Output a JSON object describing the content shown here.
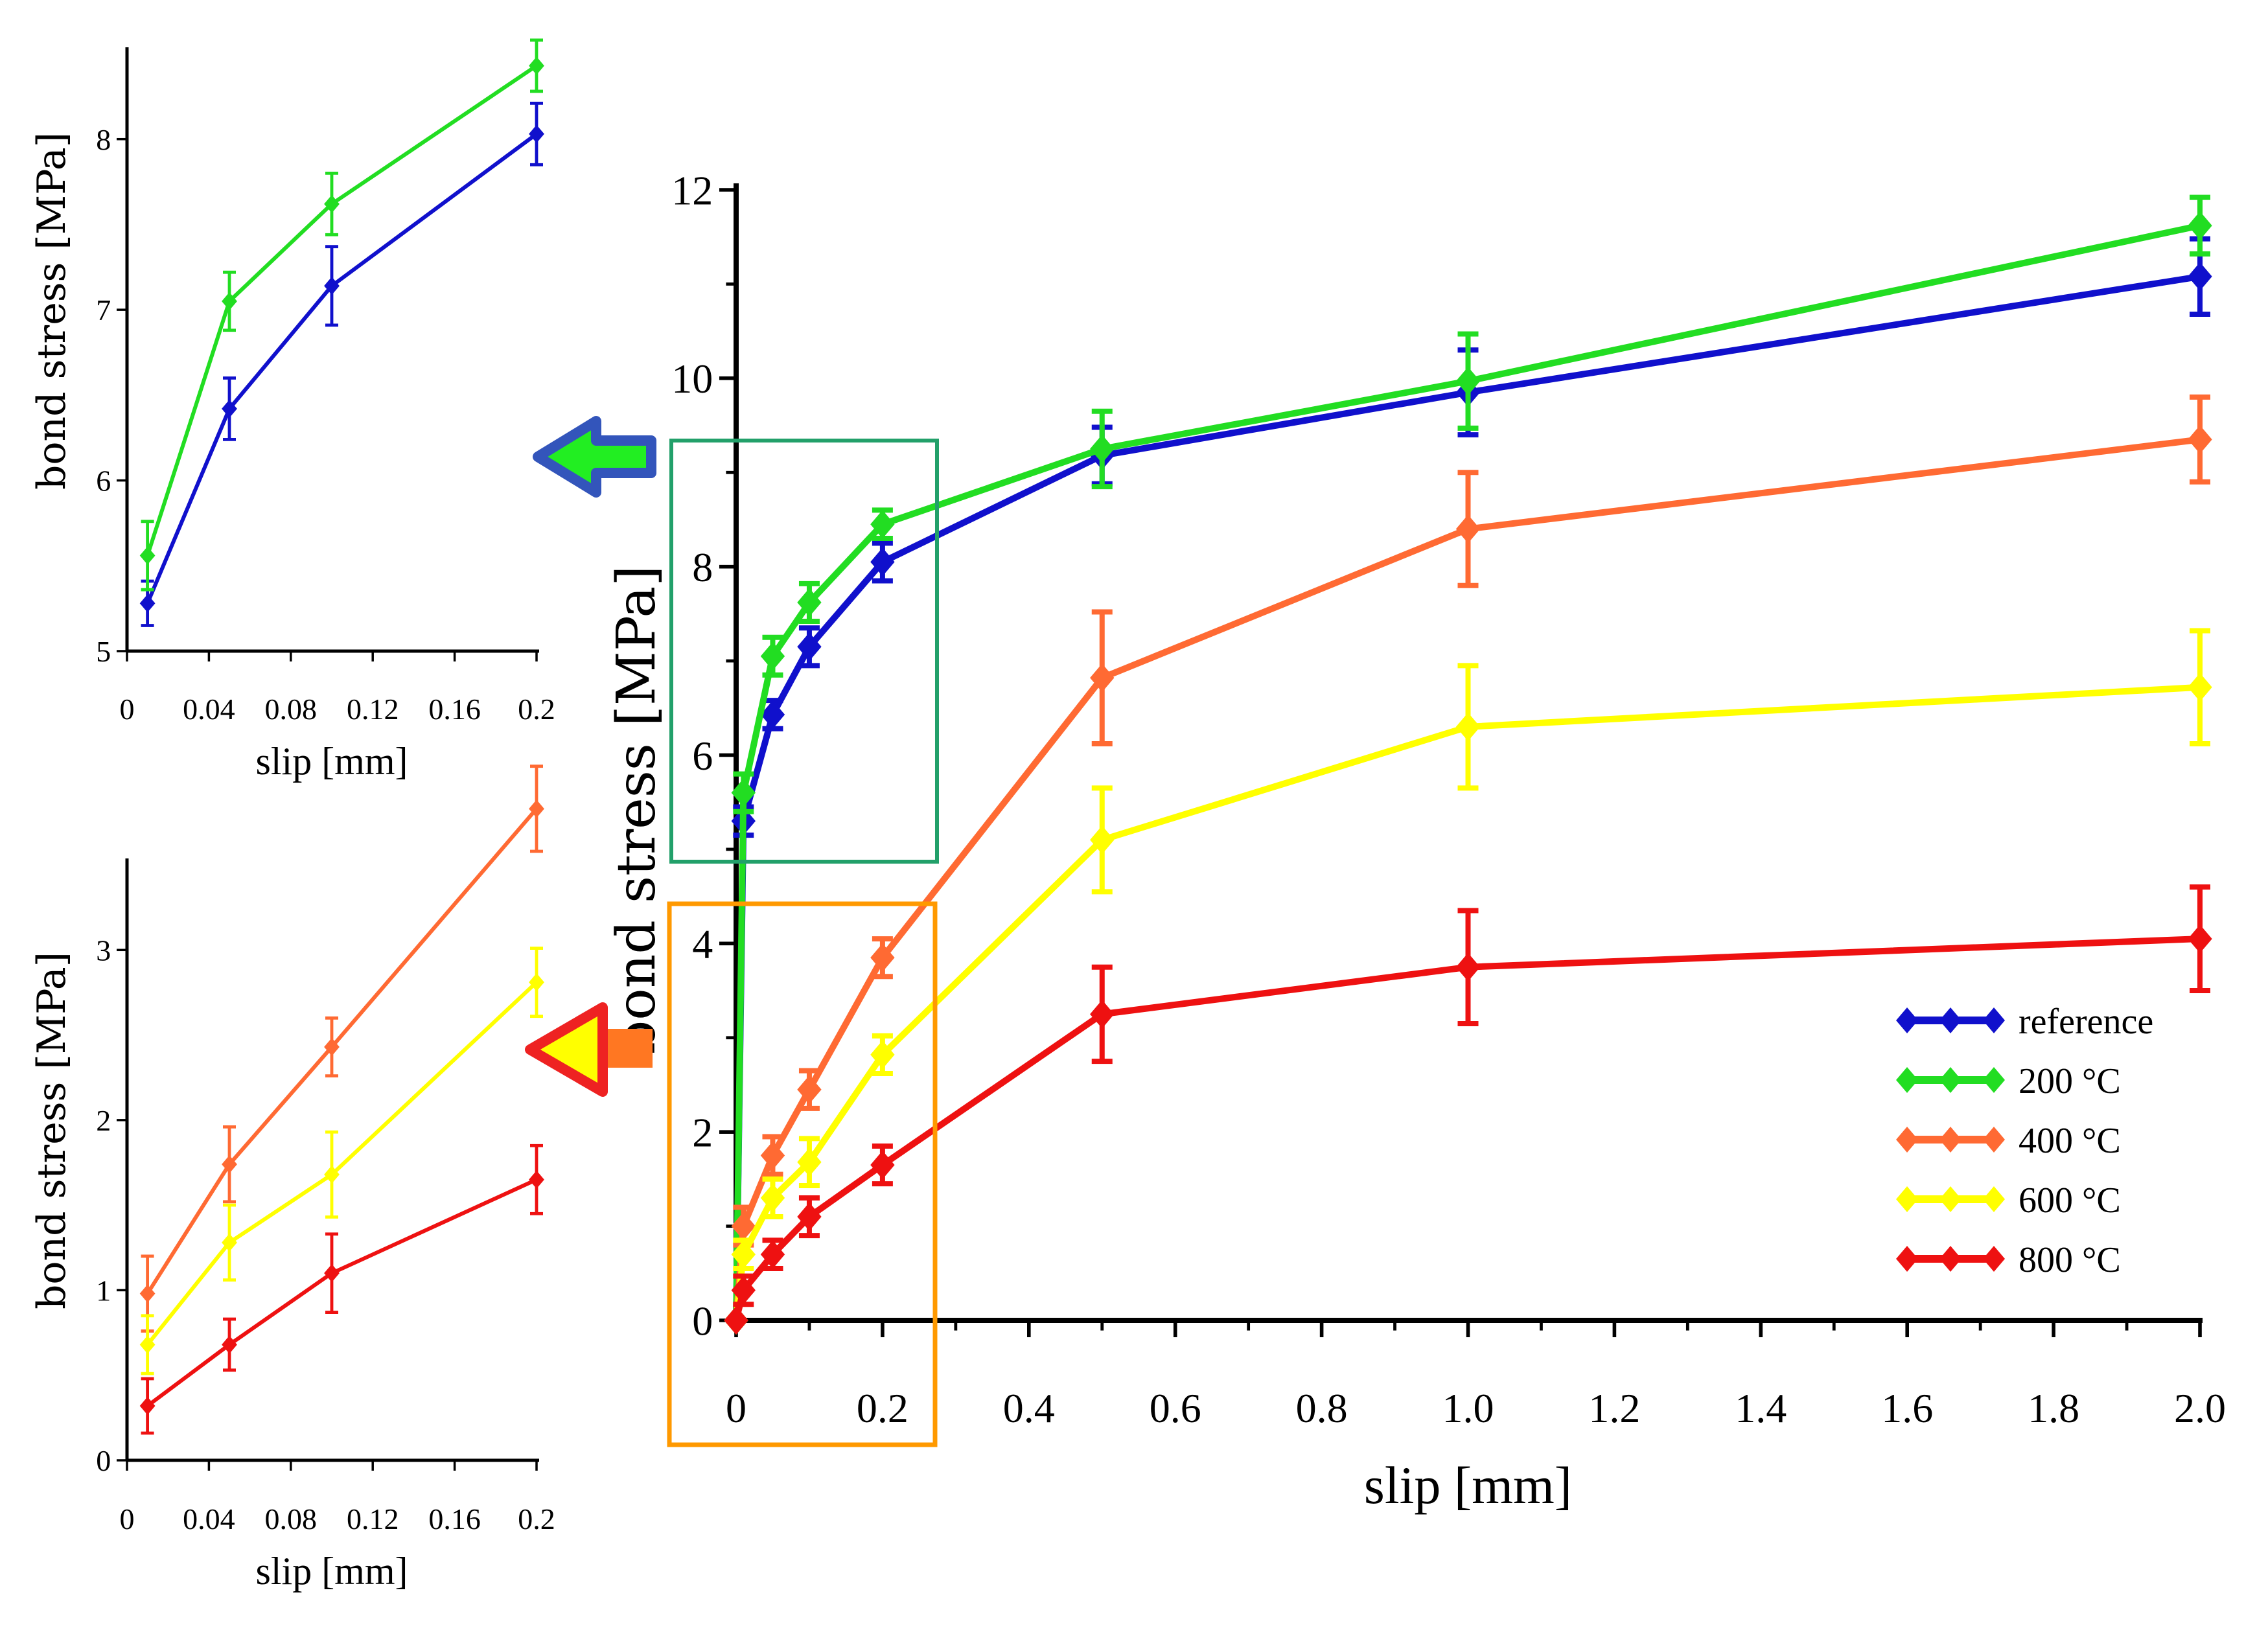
{
  "chart_data": [
    {
      "id": "main",
      "type": "line",
      "title": "",
      "xlabel": "slip [mm]",
      "ylabel": "bond stress [MPa]",
      "xlim": [
        0,
        2.0
      ],
      "ylim": [
        0,
        12
      ],
      "xticks": [
        0,
        0.2,
        0.4,
        0.6,
        0.8,
        1.0,
        1.2,
        1.4,
        1.6,
        1.8,
        2.0
      ],
      "xtick_labels": [
        "0",
        "0.2",
        "0.4",
        "0.6",
        "0.8",
        "1.0",
        "1.2",
        "1.4",
        "1.6",
        "1.8",
        "2.0"
      ],
      "yticks": [
        0,
        2,
        4,
        6,
        8,
        10,
        12
      ],
      "ytick_labels": [
        "0",
        "2",
        "4",
        "6",
        "8",
        "10",
        "12"
      ],
      "grid": false,
      "legend_position": "bottom-right",
      "series": [
        {
          "name": "reference",
          "color": "#1010cc",
          "x": [
            0,
            0.01,
            0.05,
            0.1,
            0.2,
            0.5,
            1.0,
            2.0
          ],
          "values": [
            0,
            5.3,
            6.43,
            7.15,
            8.05,
            9.18,
            9.85,
            11.08
          ],
          "err": [
            0,
            0.15,
            0.15,
            0.2,
            0.2,
            0.3,
            0.45,
            0.4
          ]
        },
        {
          "name": "200 °C",
          "color": "#22dd22",
          "x": [
            0,
            0.01,
            0.05,
            0.1,
            0.2,
            0.5,
            1.0,
            2.0
          ],
          "values": [
            0,
            5.6,
            7.05,
            7.62,
            8.45,
            9.25,
            9.97,
            11.62
          ],
          "err": [
            0,
            0.2,
            0.2,
            0.2,
            0.15,
            0.4,
            0.5,
            0.3
          ]
        },
        {
          "name": "400 °C",
          "color": "#ff6a33",
          "x": [
            0,
            0.01,
            0.05,
            0.1,
            0.2,
            0.5,
            1.0,
            2.0
          ],
          "values": [
            0,
            1.0,
            1.75,
            2.45,
            3.85,
            6.82,
            8.4,
            9.35
          ],
          "err": [
            0,
            0.2,
            0.2,
            0.2,
            0.2,
            0.7,
            0.6,
            0.45
          ]
        },
        {
          "name": "600 °C",
          "color": "#ffff00",
          "x": [
            0,
            0.01,
            0.05,
            0.1,
            0.2,
            0.5,
            1.0,
            2.0
          ],
          "values": [
            0,
            0.7,
            1.3,
            1.68,
            2.82,
            5.1,
            6.3,
            6.72
          ],
          "err": [
            0,
            0.15,
            0.2,
            0.25,
            0.2,
            0.55,
            0.65,
            0.6
          ]
        },
        {
          "name": "800 °C",
          "color": "#ee1111",
          "x": [
            0,
            0.01,
            0.05,
            0.1,
            0.2,
            0.5,
            1.0,
            2.0
          ],
          "values": [
            0,
            0.32,
            0.7,
            1.1,
            1.65,
            3.25,
            3.75,
            4.05
          ],
          "err": [
            0,
            0.15,
            0.15,
            0.2,
            0.2,
            0.5,
            0.6,
            0.55
          ]
        }
      ]
    },
    {
      "id": "inset-top",
      "type": "line",
      "title": "",
      "xlabel": "slip [mm]",
      "ylabel": "bond stress [MPa]",
      "xlim": [
        0,
        0.2
      ],
      "ylim": [
        5,
        8.5
      ],
      "xticks": [
        0,
        0.04,
        0.08,
        0.12,
        0.16,
        0.2
      ],
      "xtick_labels": [
        "0",
        "0.04",
        "0.08",
        "0.12",
        "0.16",
        "0.2"
      ],
      "yticks": [
        5,
        6,
        7,
        8
      ],
      "ytick_labels": [
        "5",
        "6",
        "7",
        "8"
      ],
      "grid": false,
      "series": [
        {
          "name": "reference",
          "color": "#1010cc",
          "x": [
            0.01,
            0.05,
            0.1,
            0.2
          ],
          "values": [
            5.28,
            6.42,
            7.14,
            8.03
          ],
          "err": [
            0.13,
            0.18,
            0.23,
            0.18
          ]
        },
        {
          "name": "200 °C",
          "color": "#22dd22",
          "x": [
            0.01,
            0.05,
            0.1,
            0.2
          ],
          "values": [
            5.56,
            7.05,
            7.62,
            8.43
          ],
          "err": [
            0.2,
            0.17,
            0.18,
            0.15
          ]
        }
      ]
    },
    {
      "id": "inset-bottom",
      "type": "line",
      "title": "",
      "xlabel": "slip [mm]",
      "ylabel": "bond stress [MPa]",
      "xlim": [
        0,
        0.2
      ],
      "ylim": [
        0,
        3.5
      ],
      "xticks": [
        0,
        0.04,
        0.08,
        0.12,
        0.16,
        0.2
      ],
      "xtick_labels": [
        "0",
        "0.04",
        "0.08",
        "0.12",
        "0.16",
        "0.2"
      ],
      "yticks": [
        0,
        1,
        2,
        3
      ],
      "ytick_labels": [
        "0",
        "1",
        "2",
        "3"
      ],
      "grid": false,
      "series": [
        {
          "name": "400 °C",
          "color": "#ff6a33",
          "x": [
            0.01,
            0.05,
            0.1,
            0.2
          ],
          "values": [
            0.98,
            1.74,
            2.43,
            3.83
          ],
          "err": [
            0.22,
            0.22,
            0.17,
            0.25
          ]
        },
        {
          "name": "600 °C",
          "color": "#ffff00",
          "x": [
            0.01,
            0.05,
            0.1,
            0.2
          ],
          "values": [
            0.68,
            1.28,
            1.68,
            2.81
          ],
          "err": [
            0.17,
            0.22,
            0.25,
            0.2
          ]
        },
        {
          "name": "800 °C",
          "color": "#ee1111",
          "x": [
            0.01,
            0.05,
            0.1,
            0.2
          ],
          "values": [
            0.32,
            0.68,
            1.1,
            1.65
          ],
          "err": [
            0.16,
            0.15,
            0.23,
            0.2
          ]
        }
      ]
    }
  ],
  "annotations": {
    "highlight_top_color": "#22a06a",
    "highlight_bottom_color": "#ff9900",
    "arrow_top_fill": "#22ee22",
    "arrow_top_border": "#3355bb",
    "arrow_bottom_fill": "#ffff00",
    "arrow_bottom_border": "#ee2222",
    "arrow_bottom_tail": "#ff7722"
  }
}
